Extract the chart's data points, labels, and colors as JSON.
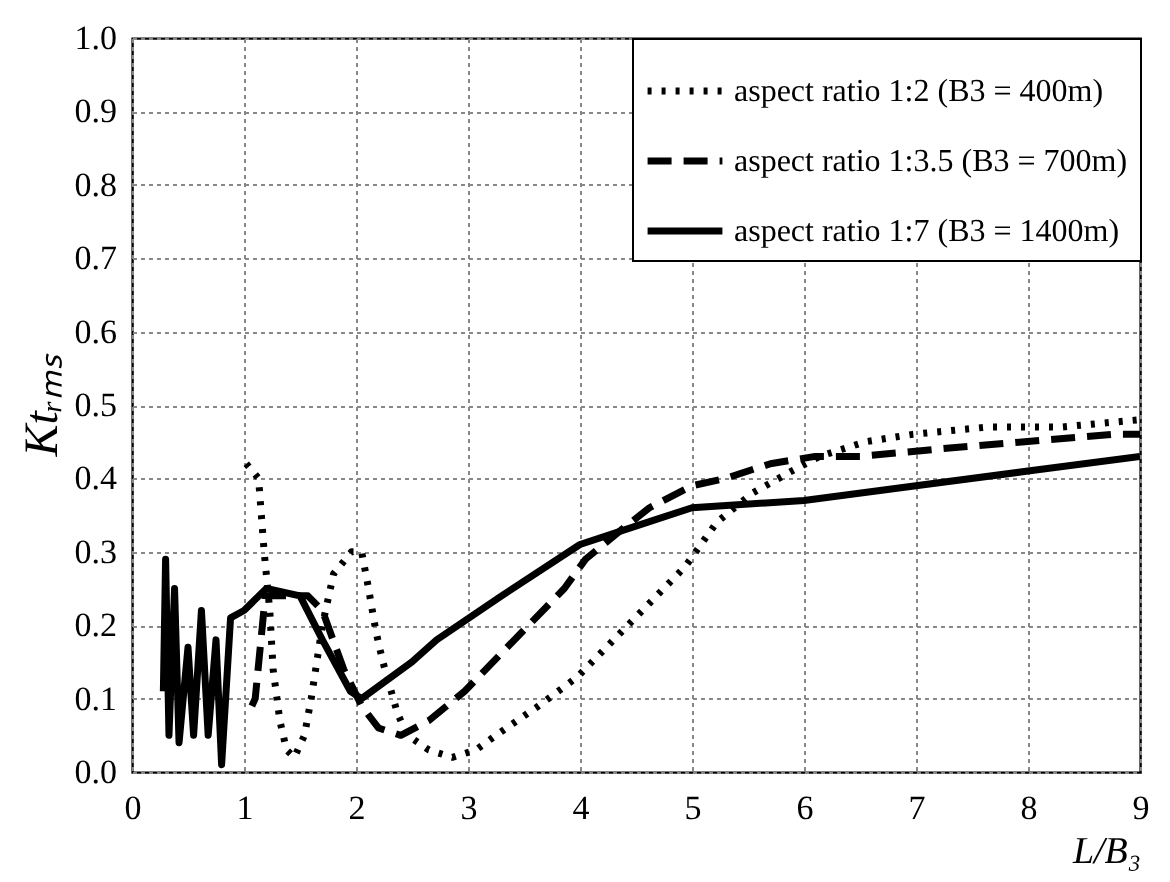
{
  "chart_data": {
    "type": "line",
    "xlabel": "L/B₃",
    "ylabel": "Ktᵣₘₛ",
    "xlim": [
      0,
      9
    ],
    "ylim": [
      0,
      1
    ],
    "xticks": [
      0,
      1,
      2,
      3,
      4,
      5,
      6,
      7,
      8,
      9
    ],
    "yticks": [
      {
        "value": 0,
        "label": "0.0"
      },
      {
        "value": 0.1,
        "label": "0.1"
      },
      {
        "value": 0.2,
        "label": "0.2"
      },
      {
        "value": 0.3,
        "label": "0.3"
      },
      {
        "value": 0.4,
        "label": "0.4"
      },
      {
        "value": 0.5,
        "label": "0.5"
      },
      {
        "value": 0.6,
        "label": "0.6"
      },
      {
        "value": 0.7,
        "label": "0.7"
      },
      {
        "value": 0.8,
        "label": "0.8"
      },
      {
        "value": 0.9,
        "label": "0.9"
      },
      {
        "value": 1,
        "label": "1.0"
      }
    ],
    "grid": true,
    "legend": "top right",
    "marker": "none",
    "series": [
      {
        "name": "aspect ratio 1:2 (B3 = 400m)",
        "color": "#000000",
        "line_style": "dotted",
        "x": [
          1.02,
          1.13,
          1.18,
          1.23,
          1.26,
          1.32,
          1.38,
          1.45,
          1.54,
          1.6,
          1.7,
          1.8,
          1.96,
          2.05,
          2.1,
          2.18,
          2.24,
          2.37,
          2.46,
          2.65,
          2.86,
          3.07,
          3.25,
          3.63,
          3.98,
          4.3,
          4.62,
          4.94,
          5.22,
          5.54,
          5.89,
          6.14,
          6.55,
          6.97,
          7.64,
          8.3,
          9
        ],
        "values": [
          0.42,
          0.4,
          0.3,
          0.22,
          0.14,
          0.07,
          0.03,
          0.02,
          0.05,
          0.1,
          0.2,
          0.27,
          0.3,
          0.3,
          0.26,
          0.19,
          0.15,
          0.08,
          0.05,
          0.03,
          0.02,
          0.03,
          0.05,
          0.09,
          0.13,
          0.18,
          0.23,
          0.28,
          0.34,
          0.38,
          0.41,
          0.43,
          0.45,
          0.46,
          0.47,
          0.47,
          0.48
        ]
      },
      {
        "name": "aspect ratio 1:3.5 (B3 = 700m)",
        "color": "#000000",
        "line_style": "dashed",
        "x": [
          1.07,
          1.1,
          1.19,
          1.38,
          1.57,
          1.7,
          1.89,
          2.05,
          2.2,
          2.4,
          2.65,
          2.97,
          3.35,
          3.86,
          4.05,
          4.37,
          4.62,
          5,
          5.3,
          5.7,
          6.1,
          6.5,
          7.2,
          7.97,
          8.75,
          9
        ],
        "values": [
          0.09,
          0.1,
          0.24,
          0.24,
          0.24,
          0.22,
          0.14,
          0.09,
          0.06,
          0.05,
          0.07,
          0.11,
          0.17,
          0.25,
          0.29,
          0.33,
          0.36,
          0.39,
          0.4,
          0.42,
          0.43,
          0.43,
          0.44,
          0.45,
          0.46,
          0.46
        ]
      },
      {
        "name": "aspect ratio 1:7 (B3 = 1400m)",
        "color": "#000000",
        "line_style": "solid",
        "x": [
          0.28,
          0.3,
          0.33,
          0.38,
          0.42,
          0.5,
          0.55,
          0.62,
          0.68,
          0.75,
          0.8,
          0.88,
          1,
          1.2,
          1.5,
          1.7,
          1.95,
          2.05,
          2.5,
          2.72,
          3.3,
          4,
          4.6,
          5,
          6,
          7,
          8,
          9
        ],
        "values": [
          0.11,
          0.29,
          0.05,
          0.25,
          0.04,
          0.17,
          0.05,
          0.22,
          0.05,
          0.18,
          0.01,
          0.21,
          0.22,
          0.25,
          0.24,
          0.18,
          0.11,
          0.1,
          0.15,
          0.18,
          0.24,
          0.31,
          0.34,
          0.36,
          0.37,
          0.39,
          0.41,
          0.43
        ]
      }
    ]
  }
}
